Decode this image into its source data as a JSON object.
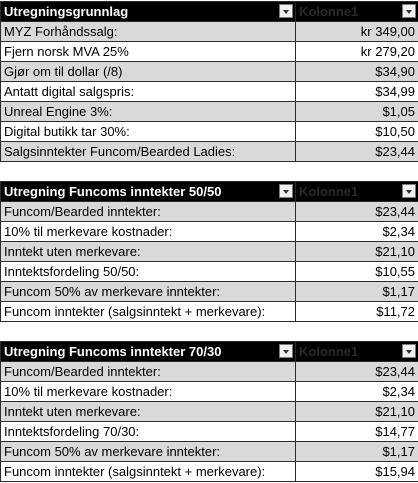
{
  "table1": {
    "header": {
      "label": "Utregningsgrunnlag",
      "column": "Kolonne1"
    },
    "rows": [
      {
        "label": "MYZ Forhåndssalg:",
        "value": "kr 349,00"
      },
      {
        "label": "Fjern norsk MVA 25%",
        "value": "kr 279,20"
      },
      {
        "label": "Gjør om til dollar (/8)",
        "value": "$34,90"
      },
      {
        "label": "Antatt digital salgspris:",
        "value": "$34,99"
      },
      {
        "label": "Unreal Engine 3%:",
        "value": "$1,05"
      },
      {
        "label": "Digital butikk tar 30%:",
        "value": "$10,50"
      },
      {
        "label": "Salgsinntekter Funcom/Bearded Ladies:",
        "value": "$23,44"
      }
    ]
  },
  "table2": {
    "header": {
      "label": "Utregning Funcoms inntekter 50/50",
      "column": "Kolonne1"
    },
    "rows": [
      {
        "label": "Funcom/Bearded inntekter:",
        "value": "$23,44"
      },
      {
        "label": "10% til merkevare kostnader:",
        "value": "$2,34"
      },
      {
        "label": "Inntekt uten merkevare:",
        "value": "$21,10"
      },
      {
        "label": "Inntektsfordeling 50/50:",
        "value": "$10,55"
      },
      {
        "label": "Funcom 50% av merkevare inntekter:",
        "value": "$1,17"
      },
      {
        "label": "Funcom inntekter (salgsinntekt + merkevare):",
        "value": "$11,72"
      }
    ]
  },
  "table3": {
    "header": {
      "label": "Utregning Funcoms inntekter 70/30",
      "column": "Kolonne1"
    },
    "rows": [
      {
        "label": "Funcom/Bearded inntekter:",
        "value": "$23,44"
      },
      {
        "label": "10% til merkevare kostnader:",
        "value": "$2,34"
      },
      {
        "label": "Inntekt uten merkevare:",
        "value": "$21,10"
      },
      {
        "label": "Inntektsfordeling 70/30:",
        "value": "$14,77"
      },
      {
        "label": "Funcom 50% av merkevare inntekter:",
        "value": "$1,17"
      },
      {
        "label": "Funcom inntekter (salgsinntekt + merkevare):",
        "value": "$15,94"
      }
    ]
  },
  "icons": {
    "filter": "filter-dropdown-icon"
  },
  "colors": {
    "header_bg": "#000000",
    "stripe": "#d9d9d9"
  }
}
